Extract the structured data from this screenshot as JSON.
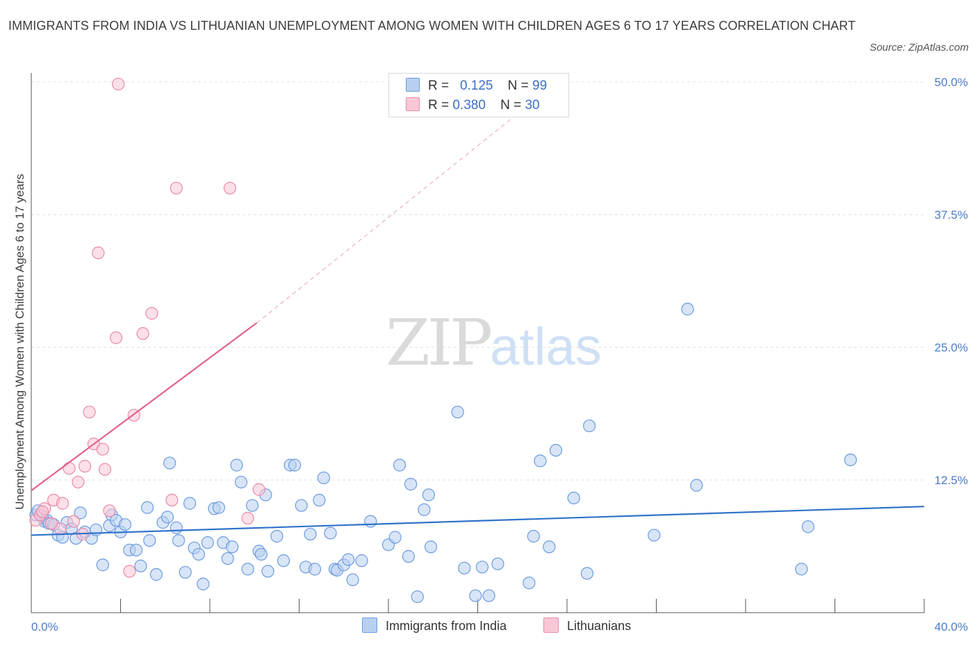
{
  "header": {
    "title": "IMMIGRANTS FROM INDIA VS LITHUANIAN UNEMPLOYMENT AMONG WOMEN WITH CHILDREN AGES 6 TO 17 YEARS CORRELATION CHART",
    "source": "Source: ZipAtlas.com"
  },
  "watermark": {
    "zip": "ZIP",
    "atlas": "atlas"
  },
  "legend": {
    "rows": [
      {
        "r_label": "R =",
        "r_value": "0.125",
        "n_label": "N =",
        "n_value": "99",
        "color": "#b8d0f0",
        "border": "#6b9be0"
      },
      {
        "r_label": "R =",
        "r_value": "0.380",
        "n_label": "N =",
        "n_value": "30",
        "color": "#f9c7d6",
        "border": "#e98aa8"
      }
    ]
  },
  "bottom_legend": [
    {
      "label": "Immigrants from India",
      "color": "#b8d0f0",
      "border": "#6b9be0"
    },
    {
      "label": "Lithuanians",
      "color": "#f9c7d6",
      "border": "#e98aa8"
    }
  ],
  "chart_data": {
    "type": "scatter",
    "title": "IMMIGRANTS FROM INDIA VS LITHUANIAN UNEMPLOYMENT AMONG WOMEN WITH CHILDREN AGES 6 TO 17 YEARS CORRELATION CHART",
    "xlabel": "",
    "ylabel": "Unemployment Among Women with Children Ages 6 to 17 years",
    "xlim": [
      0,
      40
    ],
    "ylim": [
      0,
      50
    ],
    "x_tick_labels": [
      "0.0%",
      "40.0%"
    ],
    "y_ticks": [
      12.5,
      25,
      37.5,
      50
    ],
    "y_tick_labels": [
      "12.5%",
      "25.0%",
      "37.5%",
      "50.0%"
    ],
    "grid": "horizontal dashed",
    "legend_position": "top-center",
    "series": [
      {
        "name": "Immigrants from India",
        "color": "#6b9be0",
        "fill": "#b8d0f0",
        "trend": {
          "x": [
            0,
            40
          ],
          "y": [
            7.3,
            10.0
          ]
        },
        "points": [
          [
            0.2,
            9.2
          ],
          [
            0.3,
            9.6
          ],
          [
            0.5,
            9.1
          ],
          [
            0.6,
            8.6
          ],
          [
            0.7,
            8.7
          ],
          [
            0.8,
            8.4
          ],
          [
            1.0,
            8.3
          ],
          [
            1.2,
            7.3
          ],
          [
            1.4,
            7.1
          ],
          [
            1.6,
            8.5
          ],
          [
            1.8,
            7.9
          ],
          [
            2.0,
            7.0
          ],
          [
            2.2,
            9.4
          ],
          [
            2.4,
            7.6
          ],
          [
            2.7,
            7.0
          ],
          [
            2.9,
            7.8
          ],
          [
            3.2,
            4.5
          ],
          [
            3.5,
            8.2
          ],
          [
            3.6,
            9.2
          ],
          [
            3.8,
            8.7
          ],
          [
            4.0,
            7.6
          ],
          [
            4.2,
            8.3
          ],
          [
            4.4,
            5.9
          ],
          [
            4.7,
            5.9
          ],
          [
            4.9,
            4.4
          ],
          [
            5.2,
            9.9
          ],
          [
            5.3,
            6.8
          ],
          [
            5.6,
            3.6
          ],
          [
            5.9,
            8.5
          ],
          [
            6.1,
            9.0
          ],
          [
            6.2,
            14.1
          ],
          [
            6.5,
            8.0
          ],
          [
            6.6,
            6.8
          ],
          [
            6.9,
            3.8
          ],
          [
            7.1,
            10.3
          ],
          [
            7.3,
            6.1
          ],
          [
            7.5,
            5.5
          ],
          [
            7.7,
            2.7
          ],
          [
            7.9,
            6.6
          ],
          [
            8.2,
            9.8
          ],
          [
            8.4,
            9.9
          ],
          [
            8.6,
            6.6
          ],
          [
            8.8,
            5.1
          ],
          [
            9.0,
            6.2
          ],
          [
            9.2,
            13.9
          ],
          [
            9.4,
            12.3
          ],
          [
            9.7,
            4.1
          ],
          [
            9.9,
            10.1
          ],
          [
            10.2,
            5.8
          ],
          [
            10.3,
            5.5
          ],
          [
            10.5,
            11.1
          ],
          [
            10.6,
            3.9
          ],
          [
            11.0,
            7.2
          ],
          [
            11.3,
            4.9
          ],
          [
            11.6,
            13.9
          ],
          [
            11.8,
            13.9
          ],
          [
            12.1,
            10.1
          ],
          [
            12.3,
            4.3
          ],
          [
            12.5,
            7.4
          ],
          [
            12.7,
            4.1
          ],
          [
            12.9,
            10.6
          ],
          [
            13.1,
            12.7
          ],
          [
            13.4,
            7.5
          ],
          [
            13.6,
            4.1
          ],
          [
            13.7,
            4.0
          ],
          [
            14.0,
            4.5
          ],
          [
            14.2,
            5.0
          ],
          [
            14.4,
            3.1
          ],
          [
            14.8,
            4.9
          ],
          [
            15.2,
            8.6
          ],
          [
            16.0,
            6.4
          ],
          [
            16.3,
            7.1
          ],
          [
            16.5,
            13.9
          ],
          [
            16.9,
            5.3
          ],
          [
            17.0,
            12.1
          ],
          [
            17.3,
            1.5
          ],
          [
            17.6,
            9.7
          ],
          [
            17.8,
            11.1
          ],
          [
            17.9,
            6.2
          ],
          [
            19.1,
            18.9
          ],
          [
            19.4,
            4.2
          ],
          [
            19.9,
            1.6
          ],
          [
            20.2,
            4.3
          ],
          [
            20.5,
            1.6
          ],
          [
            20.9,
            4.6
          ],
          [
            22.3,
            2.8
          ],
          [
            22.5,
            7.2
          ],
          [
            22.8,
            14.3
          ],
          [
            23.2,
            6.2
          ],
          [
            23.5,
            15.3
          ],
          [
            24.3,
            10.8
          ],
          [
            24.9,
            3.7
          ],
          [
            25.0,
            17.6
          ],
          [
            27.9,
            7.3
          ],
          [
            29.4,
            28.6
          ],
          [
            29.8,
            12.0
          ],
          [
            34.5,
            4.1
          ],
          [
            34.8,
            8.1
          ],
          [
            36.7,
            14.4
          ]
        ]
      },
      {
        "name": "Lithuanians",
        "color": "#e98aa8",
        "fill": "#f9c7d6",
        "trend": {
          "x": [
            0,
            10.1
          ],
          "y": [
            11.5,
            27.3
          ]
        },
        "trend_extension": {
          "x": [
            10.1,
            21.9
          ],
          "y": [
            27.3,
            47.2
          ]
        },
        "points": [
          [
            0.2,
            8.7
          ],
          [
            0.4,
            9.2
          ],
          [
            0.6,
            9.8
          ],
          [
            1.0,
            10.6
          ],
          [
            1.4,
            10.3
          ],
          [
            1.7,
            13.6
          ],
          [
            1.9,
            8.6
          ],
          [
            2.1,
            12.3
          ],
          [
            2.3,
            7.4
          ],
          [
            2.4,
            13.8
          ],
          [
            2.6,
            18.9
          ],
          [
            2.8,
            15.9
          ],
          [
            3.0,
            33.9
          ],
          [
            3.2,
            15.4
          ],
          [
            3.3,
            13.5
          ],
          [
            3.5,
            9.6
          ],
          [
            3.8,
            25.9
          ],
          [
            3.9,
            49.8
          ],
          [
            4.4,
            3.9
          ],
          [
            4.6,
            18.6
          ],
          [
            5.0,
            26.3
          ],
          [
            5.4,
            28.2
          ],
          [
            6.3,
            10.6
          ],
          [
            6.5,
            40.0
          ],
          [
            8.9,
            40.0
          ],
          [
            9.7,
            8.9
          ],
          [
            10.2,
            11.6
          ],
          [
            0.5,
            9.5
          ],
          [
            1.3,
            7.9
          ],
          [
            0.9,
            8.4
          ]
        ]
      }
    ]
  }
}
